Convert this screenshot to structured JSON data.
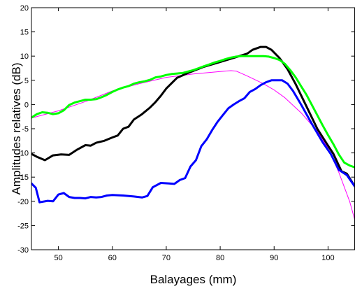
{
  "chart_data": {
    "type": "line",
    "title": "",
    "xlabel": "Balayages (mm)",
    "ylabel": "Amplitudes relatives (dB)",
    "xlim": [
      45,
      105
    ],
    "ylim": [
      -30,
      20
    ],
    "xticks": [
      50,
      60,
      70,
      80,
      90,
      100
    ],
    "yticks": [
      -30,
      -25,
      -20,
      -15,
      -10,
      -5,
      0,
      5,
      10,
      15,
      20
    ],
    "grid": false,
    "legend": "none",
    "series": [
      {
        "color": "#ff00ff",
        "line_width": 1,
        "points": [
          [
            45,
            -2.8
          ],
          [
            50,
            -1.3
          ],
          [
            55,
            0.6
          ],
          [
            60,
            2.8
          ],
          [
            65,
            4.3
          ],
          [
            70,
            5.6
          ],
          [
            75,
            6.3
          ],
          [
            80,
            6.8
          ],
          [
            82,
            7.0
          ],
          [
            83,
            6.9
          ],
          [
            85,
            5.9
          ],
          [
            88,
            4.3
          ],
          [
            90,
            3.0
          ],
          [
            92,
            1.4
          ],
          [
            95,
            -1.7
          ],
          [
            98,
            -5.5
          ],
          [
            100,
            -9.0
          ],
          [
            102,
            -14.0
          ],
          [
            104,
            -20.0
          ],
          [
            105,
            -24.0
          ]
        ]
      },
      {
        "color": "#000000",
        "line_width": 3,
        "points": [
          [
            45,
            -10.2
          ],
          [
            46,
            -10.8
          ],
          [
            47.5,
            -11.5
          ],
          [
            49,
            -10.5
          ],
          [
            50.5,
            -10.3
          ],
          [
            52,
            -10.4
          ],
          [
            53.5,
            -9.3
          ],
          [
            55,
            -8.4
          ],
          [
            56,
            -8.5
          ],
          [
            57,
            -7.9
          ],
          [
            58.5,
            -7.5
          ],
          [
            60,
            -6.8
          ],
          [
            61,
            -6.4
          ],
          [
            62,
            -5.0
          ],
          [
            63,
            -4.6
          ],
          [
            64,
            -3.1
          ],
          [
            65.5,
            -2.0
          ],
          [
            67,
            -0.6
          ],
          [
            68,
            0.5
          ],
          [
            69,
            1.8
          ],
          [
            70,
            3.3
          ],
          [
            72,
            5.5
          ],
          [
            74,
            6.5
          ],
          [
            77,
            7.8
          ],
          [
            80,
            8.8
          ],
          [
            83,
            9.8
          ],
          [
            85,
            10.5
          ],
          [
            86,
            11.3
          ],
          [
            87.5,
            11.9
          ],
          [
            88.5,
            11.9
          ],
          [
            89.5,
            11.3
          ],
          [
            91,
            9.6
          ],
          [
            92.5,
            7.3
          ],
          [
            94,
            4.2
          ],
          [
            96,
            -0.4
          ],
          [
            98,
            -5.0
          ],
          [
            100,
            -8.5
          ],
          [
            101,
            -10.2
          ],
          [
            102.5,
            -13.8
          ],
          [
            103.5,
            -14.3
          ],
          [
            105,
            -17.0
          ]
        ]
      },
      {
        "color": "#0000ff",
        "line_width": 3,
        "points": [
          [
            45,
            -16.3
          ],
          [
            45.8,
            -17.2
          ],
          [
            46.5,
            -20.2
          ],
          [
            48,
            -19.9
          ],
          [
            49,
            -20.0
          ],
          [
            50,
            -18.6
          ],
          [
            51,
            -18.3
          ],
          [
            52,
            -19.1
          ],
          [
            53,
            -19.3
          ],
          [
            54,
            -19.3
          ],
          [
            55,
            -19.4
          ],
          [
            56,
            -19.1
          ],
          [
            57,
            -19.2
          ],
          [
            58,
            -19.1
          ],
          [
            59,
            -18.8
          ],
          [
            60,
            -18.7
          ],
          [
            62,
            -18.8
          ],
          [
            64,
            -19.0
          ],
          [
            65.5,
            -19.2
          ],
          [
            66.5,
            -18.9
          ],
          [
            67.5,
            -17.1
          ],
          [
            69,
            -16.2
          ],
          [
            70.5,
            -16.3
          ],
          [
            71.5,
            -16.4
          ],
          [
            72.5,
            -15.6
          ],
          [
            73.5,
            -15.2
          ],
          [
            74.5,
            -12.8
          ],
          [
            75.5,
            -11.5
          ],
          [
            76.5,
            -8.6
          ],
          [
            77.5,
            -7.2
          ],
          [
            78.5,
            -5.3
          ],
          [
            79.5,
            -3.6
          ],
          [
            80.5,
            -2.2
          ],
          [
            81.5,
            -0.8
          ],
          [
            82.5,
            0.0
          ],
          [
            83.5,
            0.7
          ],
          [
            84.5,
            1.3
          ],
          [
            85.5,
            2.6
          ],
          [
            86.5,
            3.2
          ],
          [
            87.5,
            4.0
          ],
          [
            88.5,
            4.6
          ],
          [
            89.5,
            5.0
          ],
          [
            90.5,
            5.0
          ],
          [
            91.5,
            5.0
          ],
          [
            92.5,
            4.3
          ],
          [
            93.5,
            2.8
          ],
          [
            95,
            0.0
          ],
          [
            97,
            -4.0
          ],
          [
            99,
            -7.8
          ],
          [
            100.5,
            -10.2
          ],
          [
            102,
            -13.5
          ],
          [
            103.5,
            -14.6
          ],
          [
            105,
            -17.0
          ]
        ]
      },
      {
        "color": "#00ff00",
        "line_width": 3,
        "points": [
          [
            45,
            -2.7
          ],
          [
            46,
            -2.0
          ],
          [
            47,
            -1.6
          ],
          [
            48,
            -1.7
          ],
          [
            49,
            -2.0
          ],
          [
            50,
            -1.8
          ],
          [
            51,
            -1.2
          ],
          [
            52,
            -0.1
          ],
          [
            53,
            0.4
          ],
          [
            54,
            0.7
          ],
          [
            55,
            1.0
          ],
          [
            56,
            1.0
          ],
          [
            57,
            1.1
          ],
          [
            58,
            1.5
          ],
          [
            59,
            2.0
          ],
          [
            60,
            2.6
          ],
          [
            61,
            3.1
          ],
          [
            62,
            3.5
          ],
          [
            63,
            3.8
          ],
          [
            64,
            4.3
          ],
          [
            65,
            4.6
          ],
          [
            66,
            4.8
          ],
          [
            67,
            5.1
          ],
          [
            68,
            5.6
          ],
          [
            69,
            5.8
          ],
          [
            70,
            6.1
          ],
          [
            71,
            6.3
          ],
          [
            72,
            6.4
          ],
          [
            73,
            6.5
          ],
          [
            74,
            6.8
          ],
          [
            75,
            7.1
          ],
          [
            76,
            7.5
          ],
          [
            77,
            7.9
          ],
          [
            78,
            8.3
          ],
          [
            79,
            8.7
          ],
          [
            80,
            9.0
          ],
          [
            81,
            9.4
          ],
          [
            82,
            9.7
          ],
          [
            83,
            9.9
          ],
          [
            84,
            10.0
          ],
          [
            85,
            10.0
          ],
          [
            86,
            10.0
          ],
          [
            87,
            10.0
          ],
          [
            88,
            10.0
          ],
          [
            89,
            9.9
          ],
          [
            90,
            9.6
          ],
          [
            91,
            9.2
          ],
          [
            92,
            8.4
          ],
          [
            93,
            7.1
          ],
          [
            94,
            5.6
          ],
          [
            95,
            3.8
          ],
          [
            96,
            2.0
          ],
          [
            97,
            -0.1
          ],
          [
            98,
            -2.2
          ],
          [
            99,
            -4.3
          ],
          [
            100,
            -6.3
          ],
          [
            101,
            -8.2
          ],
          [
            102,
            -10.3
          ],
          [
            103,
            -12.0
          ],
          [
            104,
            -12.6
          ],
          [
            105,
            -13.0
          ]
        ]
      }
    ]
  }
}
